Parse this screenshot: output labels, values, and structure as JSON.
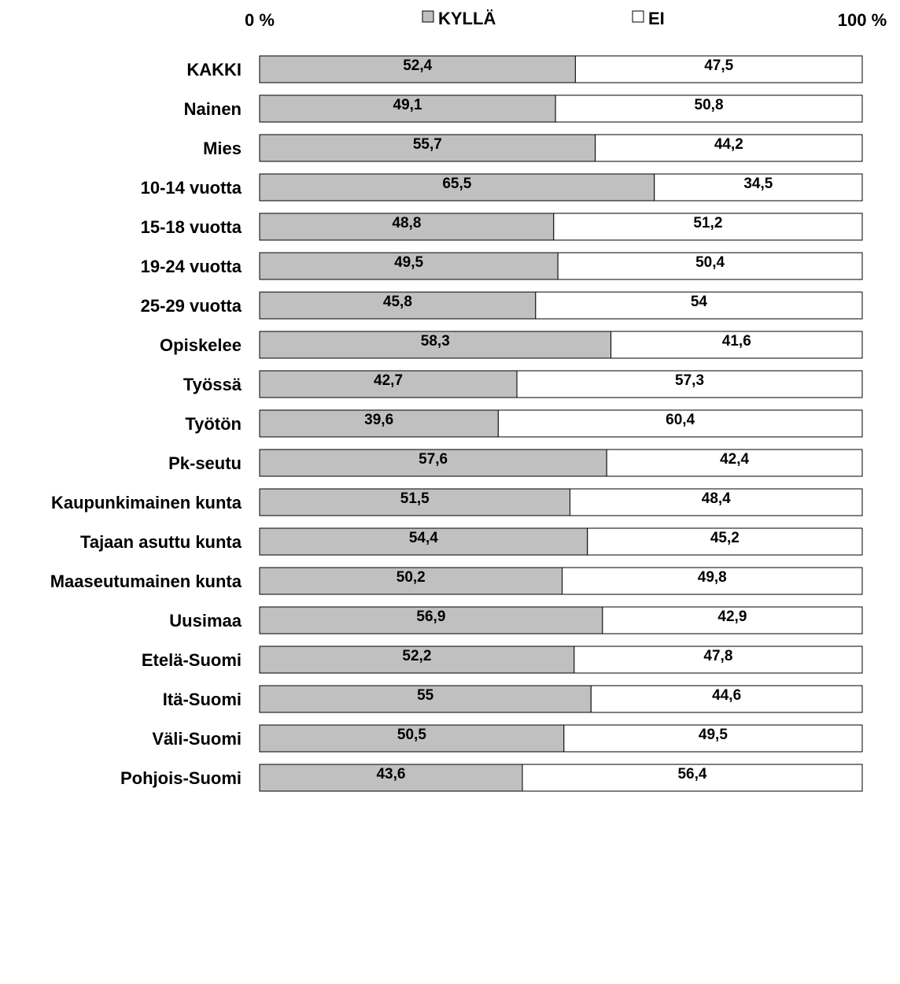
{
  "chart_data": {
    "type": "bar",
    "orientation": "horizontal",
    "stacked": "percent",
    "xlim": [
      0,
      100
    ],
    "axis_labels": {
      "min": "0 %",
      "max": "100 %"
    },
    "legend_placement": "top",
    "grid": false,
    "series": [
      {
        "name": "KYLLÄ",
        "color": "#c0c0c0"
      },
      {
        "name": "EI",
        "color": "#ffffff"
      }
    ],
    "groups": [
      {
        "categories": [
          "KAKKI"
        ]
      },
      {
        "categories": [
          "Nainen",
          "Mies"
        ]
      },
      {
        "categories": [
          "10-14 vuotta",
          "15-18 vuotta",
          "19-24 vuotta",
          "25-29 vuotta"
        ]
      },
      {
        "categories": [
          "Opiskelee",
          "Työssä",
          "Työtön"
        ]
      },
      {
        "categories": [
          "Pk-seutu",
          "Kaupunkimainen kunta",
          "Tajaan asuttu kunta",
          "Maaseutumainen kunta"
        ]
      },
      {
        "categories": [
          "Uusimaa",
          "Etelä-Suomi",
          "Itä-Suomi",
          "Väli-Suomi",
          "Pohjois-Suomi"
        ]
      }
    ],
    "categories": [
      "KAKKI",
      "Nainen",
      "Mies",
      "10-14 vuotta",
      "15-18 vuotta",
      "19-24 vuotta",
      "25-29 vuotta",
      "Opiskelee",
      "Työssä",
      "Työtön",
      "Pk-seutu",
      "Kaupunkimainen kunta",
      "Tajaan asuttu kunta",
      "Maaseutumainen kunta",
      "Uusimaa",
      "Etelä-Suomi",
      "Itä-Suomi",
      "Väli-Suomi",
      "Pohjois-Suomi"
    ],
    "values": {
      "KYLLÄ": [
        52.4,
        49.1,
        55.7,
        65.5,
        48.8,
        49.5,
        45.8,
        58.3,
        42.7,
        39.6,
        57.6,
        51.5,
        54.4,
        50.2,
        56.9,
        52.2,
        55,
        50.5,
        43.6
      ],
      "EI": [
        47.5,
        50.8,
        44.2,
        34.5,
        51.2,
        50.4,
        54,
        41.6,
        57.3,
        60.4,
        42.4,
        48.4,
        45.2,
        49.8,
        42.9,
        47.8,
        44.6,
        49.5,
        56.4
      ]
    },
    "value_labels": {
      "KYLLÄ": [
        "52,4",
        "49,1",
        "55,7",
        "65,5",
        "48,8",
        "49,5",
        "45,8",
        "58,3",
        "42,7",
        "39,6",
        "57,6",
        "51,5",
        "54,4",
        "50,2",
        "56,9",
        "52,2",
        "55",
        "50,5",
        "43,6"
      ],
      "EI": [
        "47,5",
        "50,8",
        "44,2",
        "34,5",
        "51,2",
        "50,4",
        "54",
        "41,6",
        "57,3",
        "60,4",
        "42,4",
        "48,4",
        "45,2",
        "49,8",
        "42,9",
        "47,8",
        "44,6",
        "49,5",
        "56,4"
      ]
    }
  }
}
